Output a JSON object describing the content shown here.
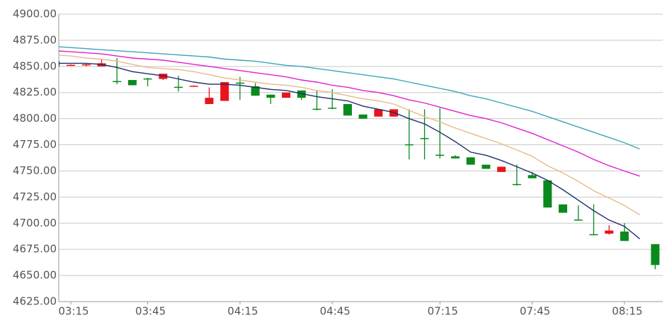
{
  "chart_data": {
    "type": "candlestick",
    "categories": [
      null,
      "03:15",
      null,
      null,
      null,
      null,
      "03:45",
      null,
      null,
      null,
      null,
      null,
      "04:15",
      null,
      null,
      null,
      null,
      null,
      "04:45",
      null,
      null,
      null,
      null,
      null,
      null,
      "07:15",
      null,
      null,
      null,
      null,
      null,
      "07:45",
      null,
      null,
      null,
      null,
      null,
      "08:15",
      null,
      null
    ],
    "open": [
      4855,
      4851,
      4851,
      4850,
      4836,
      4837,
      4838.5,
      4838,
      4830.5,
      4831,
      4814,
      4817,
      4834.5,
      4831,
      4823,
      4820,
      4827,
      4809.5,
      4810.5,
      4814,
      4804,
      4802,
      4802,
      4775.5,
      4781.5,
      4765.5,
      4764,
      4763,
      4756,
      4749,
      4737.5,
      4746,
      4741,
      4718,
      4703.5,
      4689.5,
      4690,
      4692,
      null,
      4680
    ],
    "high": [
      4856,
      4852,
      4853,
      4857,
      4858,
      4837,
      4839,
      4843,
      4841,
      4832,
      4830,
      4835,
      4840,
      4834,
      4823,
      4825,
      4827,
      4827,
      4828,
      4814,
      4804,
      4809,
      4809,
      4809,
      4809,
      4810,
      4765,
      4763,
      4756,
      4754,
      4756,
      4749,
      4741,
      4718,
      4717,
      4718,
      4698,
      4700,
      null,
      4680
    ],
    "low": [
      4850,
      4851,
      4850,
      4850,
      4833,
      4832,
      4831,
      4837,
      4826,
      4831,
      4814,
      4817,
      4818,
      4822,
      4814,
      4820,
      4818,
      4808,
      4809,
      4803,
      4800,
      4802,
      4802,
      4761,
      4761,
      4762,
      4762,
      4756,
      4752,
      4749,
      4736,
      4743,
      4715,
      4710,
      4703,
      4689,
      4689,
      4683,
      null,
      4656
    ],
    "close": [
      4850,
      4851.5,
      4852,
      4853,
      4835,
      4832,
      4838,
      4843,
      4830,
      4831.5,
      4820,
      4835,
      4834,
      4822,
      4820,
      4825,
      4820,
      4809,
      4810,
      4803,
      4800,
      4809,
      4809,
      4775,
      4781,
      4765,
      4762,
      4756,
      4752,
      4754,
      4737,
      4743,
      4715,
      4710,
      4703,
      4689,
      4693,
      4683,
      null,
      4660
    ],
    "up_color": "#e8141b",
    "down_color": "#0a8a1c",
    "series": [
      {
        "color": "#1f2d6b",
        "values": [
          4853,
          4853,
          4853,
          4852,
          4849,
          4845,
          4843,
          4841,
          4838,
          4835,
          4833,
          4833,
          4832,
          4830,
          4828,
          4827,
          4824,
          4821,
          4819,
          4817,
          4812,
          4809,
          4806,
          4800,
          4795,
          4787,
          4778,
          4768,
          4765,
          4760,
          4754,
          4748,
          4741,
          4732,
          4722,
          4712,
          4703,
          4697,
          4685,
          null
        ]
      },
      {
        "color": "#e9b98a",
        "values": [
          4861,
          4860,
          4858,
          4857,
          4855,
          4852,
          4849,
          4848,
          4847,
          4845,
          4842,
          4839,
          4837,
          4835,
          4833,
          4832,
          4830,
          4827,
          4825,
          4822,
          4819,
          4817,
          4814,
          4808,
          4802,
          4797,
          4791,
          4786,
          4781,
          4776,
          4770,
          4764,
          4755,
          4748,
          4740,
          4731,
          4724,
          4717,
          4708,
          null
        ]
      },
      {
        "color": "#e020d0",
        "values": [
          4865,
          4864,
          4863,
          4862,
          4860,
          4858,
          4857,
          4856,
          4854,
          4852,
          4850,
          4848,
          4846,
          4844,
          4842,
          4840,
          4837,
          4835,
          4832,
          4830,
          4827,
          4825,
          4822,
          4818,
          4815,
          4811,
          4807,
          4803,
          4800,
          4796,
          4791,
          4786,
          4780,
          4774,
          4768,
          4761,
          4755,
          4750,
          4745,
          null
        ]
      },
      {
        "color": "#3aa6b9",
        "values": [
          4869,
          4868,
          4867,
          4866,
          4865,
          4864,
          4863,
          4862,
          4861,
          4860,
          4859,
          4857,
          4856,
          4855,
          4853,
          4851,
          4850,
          4848,
          4846,
          4844,
          4842,
          4840,
          4838,
          4835,
          4832,
          4829,
          4826,
          4822,
          4819,
          4815,
          4811,
          4807,
          4802,
          4797,
          4792,
          4787,
          4782,
          4777,
          4771,
          null
        ]
      }
    ],
    "ylim": [
      4625,
      4900
    ],
    "yticks": [
      {
        "value": 4625,
        "label": "4625.00"
      },
      {
        "value": 4650,
        "label": "4650.00"
      },
      {
        "value": 4675,
        "label": "4675.00"
      },
      {
        "value": 4700,
        "label": "4700.00"
      },
      {
        "value": 4725,
        "label": "4725.00"
      },
      {
        "value": 4750,
        "label": "4750.00"
      },
      {
        "value": 4775,
        "label": "4775.00"
      },
      {
        "value": 4800,
        "label": "4800.00"
      },
      {
        "value": 4825,
        "label": "4825.00"
      },
      {
        "value": 4850,
        "label": "4850.00"
      },
      {
        "value": 4875,
        "label": "4875.00"
      },
      {
        "value": 4900,
        "label": "4900.00"
      }
    ],
    "grid": true
  }
}
